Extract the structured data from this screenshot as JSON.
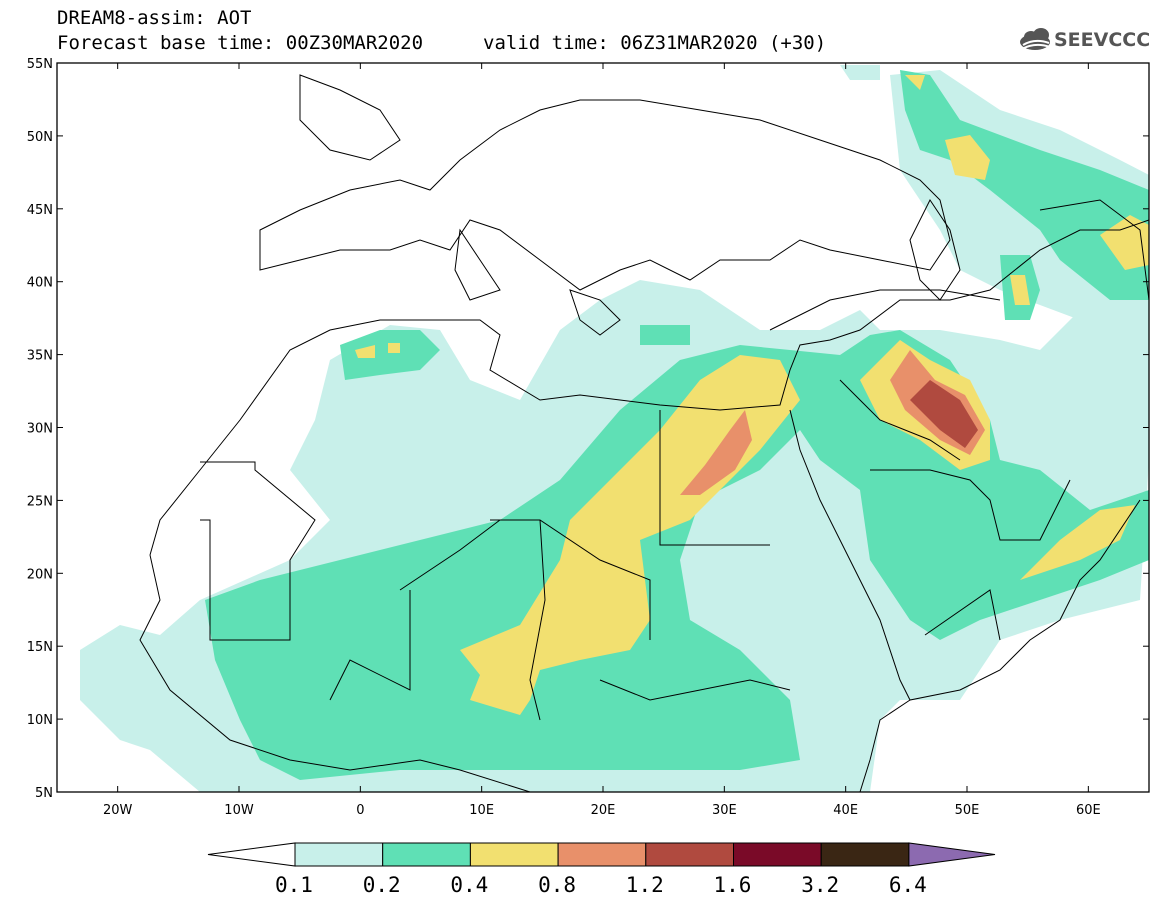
{
  "header": {
    "title": "DREAM8-assim: AOT",
    "base_time": "Forecast base time: 00Z30MAR2020",
    "valid_time": "valid time: 06Z31MAR2020 (+30)",
    "logo": "SEEVCCC"
  },
  "map": {
    "lon_range": [
      -25,
      65
    ],
    "lat_range": [
      5,
      55
    ],
    "lon_ticks": [
      "20W",
      "10W",
      "0",
      "10E",
      "20E",
      "30E",
      "40E",
      "50E",
      "60E"
    ],
    "lat_ticks": [
      "55N",
      "50N",
      "45N",
      "40N",
      "35N",
      "30N",
      "25N",
      "20N",
      "15N",
      "10N",
      "5N"
    ]
  },
  "colorbar": {
    "labels": [
      "0.1",
      "0.2",
      "0.4",
      "0.8",
      "1.2",
      "1.6",
      "3.2",
      "6.4"
    ],
    "colors": [
      "#c8f0ea",
      "#5fe0b5",
      "#f2e070",
      "#e8906a",
      "#b04a3f",
      "#7a0a28",
      "#3a2614",
      "#8c6ab0"
    ]
  }
}
